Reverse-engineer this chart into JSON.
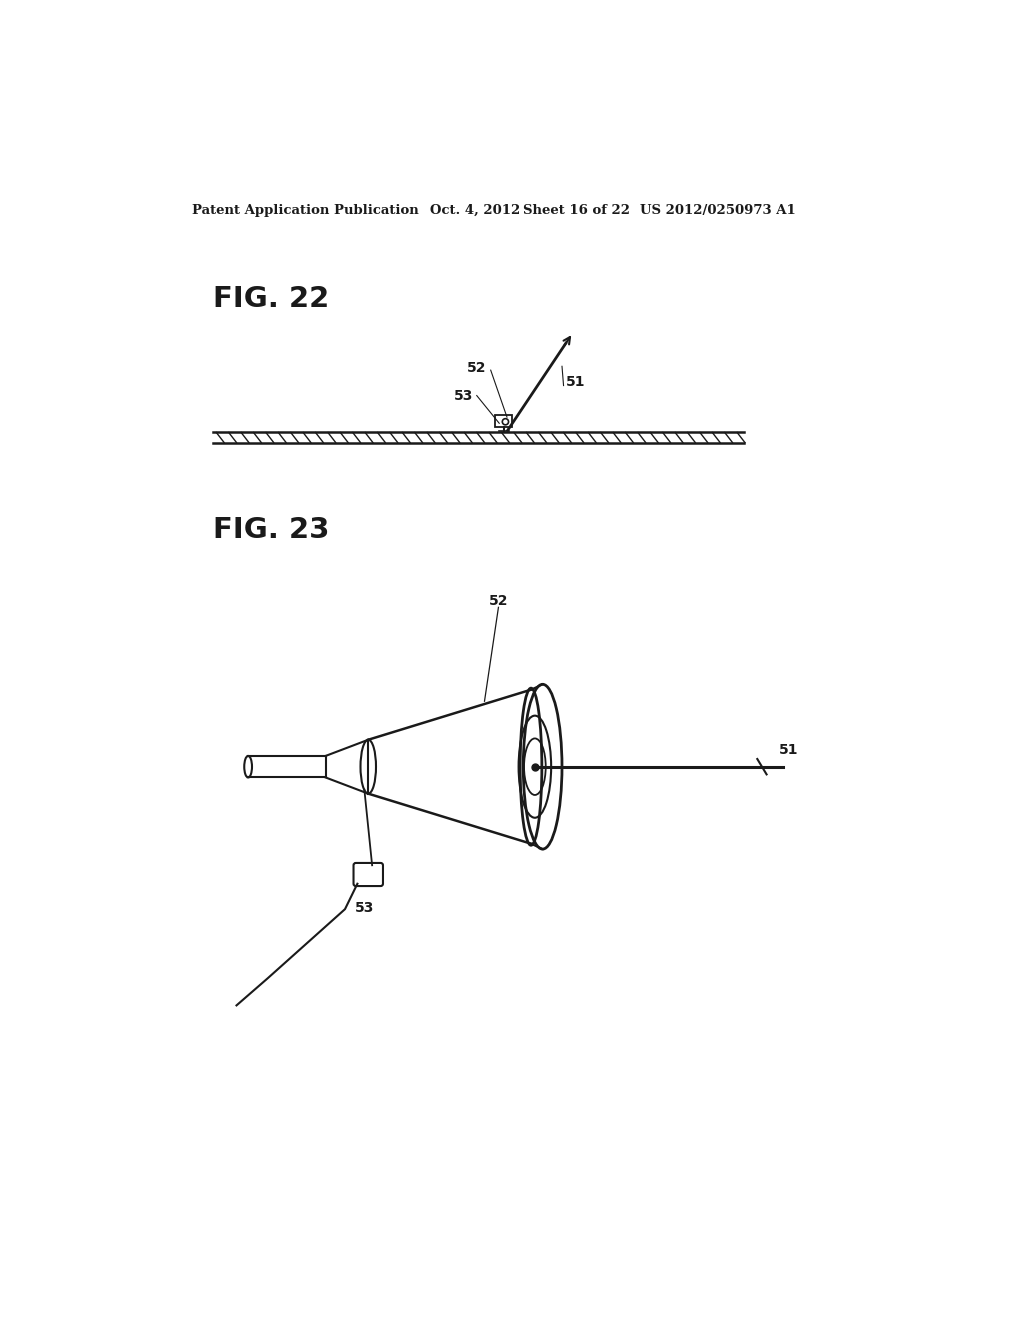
{
  "background_color": "#ffffff",
  "header_left": "Patent Application Publication",
  "header_mid": "Oct. 4, 2012   Sheet 16 of 22",
  "header_right": "US 2012/0250973 A1",
  "fig22_label": "FIG. 22",
  "fig23_label": "FIG. 23",
  "label_51": "51",
  "label_52": "52",
  "label_53": "53"
}
